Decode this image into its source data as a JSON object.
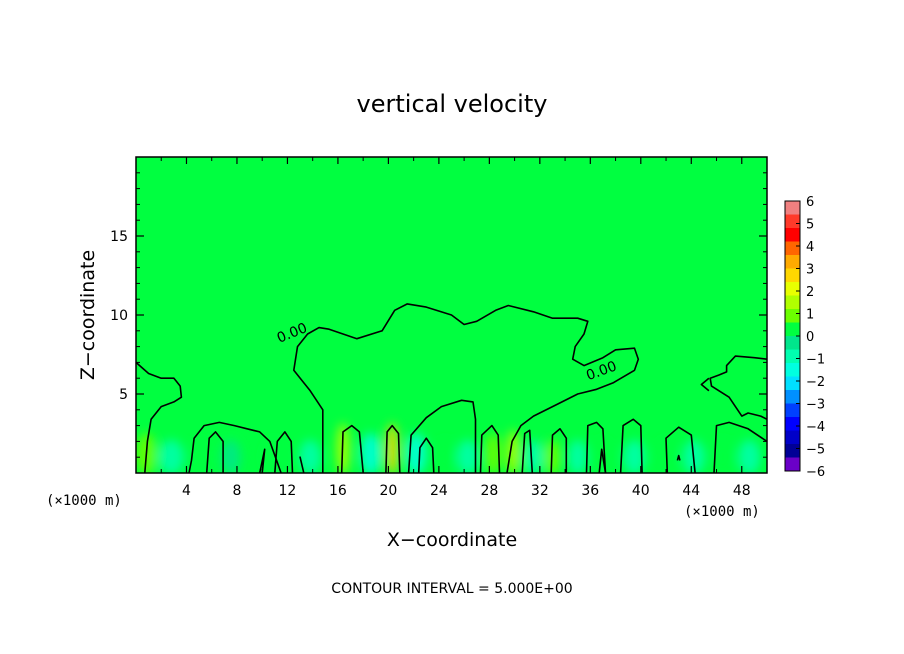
{
  "chart_data": {
    "type": "heatmap",
    "title": "vertical velocity",
    "xlabel": "X−coordinate",
    "ylabel": "Z−coordinate",
    "x_unit_left": "(×1000 m)",
    "x_unit_right": "(×1000 m)",
    "xlim": [
      0,
      50
    ],
    "ylim": [
      0,
      20
    ],
    "x_ticks": [
      4,
      8,
      12,
      16,
      20,
      24,
      28,
      32,
      36,
      40,
      44,
      48
    ],
    "y_ticks": [
      5,
      10,
      15
    ],
    "contour_level_label": "0.00",
    "footnote": "CONTOUR INTERVAL = 5.000E+00",
    "background_value": 0,
    "colorbar": {
      "ticks": [
        6,
        5,
        4,
        3,
        2,
        1,
        0,
        -1,
        -2,
        -3,
        -4,
        -5,
        -6
      ],
      "tick_labels": [
        "6",
        "5",
        "4",
        "3",
        "2",
        "1",
        "0",
        "−1",
        "−2",
        "−3",
        "−4",
        "−5",
        "−6"
      ],
      "colors": [
        "#f08080",
        "#ff3a2a",
        "#ff0000",
        "#ff6600",
        "#ffaa00",
        "#ffd700",
        "#e8ff00",
        "#b0ff00",
        "#6cff00",
        "#00ff40",
        "#00e68c",
        "#00ffb0",
        "#00ffe0",
        "#00e0ff",
        "#0090ff",
        "#0040ff",
        "#0000ff",
        "#0000c8",
        "#000096",
        "#6a00c8"
      ]
    },
    "cells": [
      {
        "x": 0.8,
        "z": 1.2,
        "w": 1.5,
        "v": 0.9
      },
      {
        "x": 2.8,
        "z": 1.0,
        "w": 1.8,
        "v": -0.8
      },
      {
        "x": 5.0,
        "z": 1.0,
        "w": 1.2,
        "v": 0.6
      },
      {
        "x": 7.5,
        "z": 1.0,
        "w": 1.4,
        "v": -0.6
      },
      {
        "x": 11.0,
        "z": 1.0,
        "w": 1.5,
        "v": 0.5
      },
      {
        "x": 13.8,
        "z": 1.0,
        "w": 1.6,
        "v": -1.0
      },
      {
        "x": 16.4,
        "z": 1.5,
        "w": 1.0,
        "v": 1.8
      },
      {
        "x": 18.6,
        "z": 1.2,
        "w": 1.5,
        "v": -1.3
      },
      {
        "x": 20.3,
        "z": 1.5,
        "w": 0.9,
        "v": 3.0
      },
      {
        "x": 22.2,
        "z": 1.2,
        "w": 1.5,
        "v": -1.2
      },
      {
        "x": 24.5,
        "z": 1.0,
        "w": 1.2,
        "v": 0.5
      },
      {
        "x": 26.3,
        "z": 1.0,
        "w": 1.6,
        "v": -0.9
      },
      {
        "x": 28.3,
        "z": 1.2,
        "w": 1.2,
        "v": 1.0
      },
      {
        "x": 29.9,
        "z": 1.3,
        "w": 1.0,
        "v": 1.8
      },
      {
        "x": 31.5,
        "z": 1.0,
        "w": 1.4,
        "v": -0.9
      },
      {
        "x": 33.0,
        "z": 1.0,
        "w": 1.2,
        "v": 0.8
      },
      {
        "x": 35.0,
        "z": 1.0,
        "w": 1.4,
        "v": -0.7
      },
      {
        "x": 37.0,
        "z": 1.0,
        "w": 1.3,
        "v": 0.6
      },
      {
        "x": 39.5,
        "z": 1.0,
        "w": 1.6,
        "v": -0.7
      },
      {
        "x": 42.0,
        "z": 1.0,
        "w": 1.4,
        "v": 0.5
      },
      {
        "x": 44.2,
        "z": 1.0,
        "w": 1.6,
        "v": -0.8
      },
      {
        "x": 46.5,
        "z": 1.0,
        "w": 1.3,
        "v": 0.6
      },
      {
        "x": 48.6,
        "z": 1.0,
        "w": 1.6,
        "v": -0.8
      }
    ],
    "contours": [
      [
        [
          11.5,
          0
        ],
        [
          10.6,
          2.0
        ],
        [
          9.8,
          2.6
        ],
        [
          8.8,
          2.8
        ],
        [
          7.8,
          3.0
        ],
        [
          6.6,
          3.2
        ],
        [
          5.4,
          3.0
        ],
        [
          4.6,
          2.2
        ],
        [
          4.4,
          0.8
        ],
        [
          4.2,
          0
        ]
      ],
      [
        [
          6.9,
          0
        ],
        [
          6.9,
          2.0
        ],
        [
          6.3,
          2.6
        ],
        [
          5.8,
          2.2
        ],
        [
          5.6,
          0
        ]
      ],
      [
        [
          14.8,
          0
        ],
        [
          14.8,
          4.0
        ],
        [
          13.8,
          5.2
        ],
        [
          12.5,
          6.5
        ],
        [
          12.8,
          8.0
        ],
        [
          13.6,
          8.8
        ],
        [
          14.5,
          9.2
        ],
        [
          15.3,
          9.1
        ],
        [
          17.5,
          8.5
        ],
        [
          19.5,
          9.0
        ],
        [
          20.5,
          10.3
        ],
        [
          21.5,
          10.7
        ],
        [
          23.0,
          10.5
        ],
        [
          25.0,
          10.0
        ],
        [
          26.0,
          9.4
        ],
        [
          27.0,
          9.6
        ],
        [
          28.5,
          10.3
        ],
        [
          29.5,
          10.6
        ],
        [
          31.5,
          10.2
        ],
        [
          33.0,
          9.8
        ],
        [
          35.0,
          9.8
        ],
        [
          35.8,
          9.6
        ],
        [
          35.5,
          8.8
        ],
        [
          34.8,
          8.0
        ],
        [
          34.6,
          7.2
        ],
        [
          35.5,
          6.8
        ],
        [
          37.0,
          7.3
        ],
        [
          38.0,
          7.8
        ],
        [
          39.5,
          7.9
        ],
        [
          39.8,
          7.2
        ],
        [
          39.5,
          6.5
        ],
        [
          37.8,
          5.7
        ],
        [
          36.5,
          5.3
        ],
        [
          35.0,
          5.0
        ],
        [
          33.5,
          4.4
        ],
        [
          31.5,
          3.6
        ],
        [
          30.5,
          3.0
        ],
        [
          29.8,
          2.0
        ],
        [
          29.4,
          0
        ]
      ],
      [
        [
          0,
          7.0
        ],
        [
          1.0,
          6.3
        ],
        [
          2.0,
          6.0
        ],
        [
          3.0,
          6.0
        ],
        [
          3.5,
          5.5
        ],
        [
          3.6,
          4.8
        ],
        [
          3.0,
          4.5
        ],
        [
          2.0,
          4.2
        ],
        [
          1.2,
          3.4
        ],
        [
          0.9,
          2.0
        ],
        [
          0.7,
          0
        ]
      ],
      [
        [
          9.8,
          0
        ],
        [
          10.2,
          1.5
        ],
        [
          10.0,
          0
        ]
      ],
      [
        [
          11.0,
          0
        ],
        [
          11.2,
          2.0
        ],
        [
          11.8,
          2.6
        ],
        [
          12.3,
          2.0
        ],
        [
          12.4,
          0
        ]
      ],
      [
        [
          13.3,
          0
        ],
        [
          13.0,
          1.0
        ],
        [
          13.3,
          0
        ]
      ],
      [
        [
          16.3,
          0
        ],
        [
          16.4,
          2.6
        ],
        [
          17.1,
          3.0
        ],
        [
          17.7,
          2.6
        ],
        [
          18.0,
          0
        ]
      ],
      [
        [
          19.8,
          0
        ],
        [
          19.9,
          2.6
        ],
        [
          20.3,
          3.0
        ],
        [
          20.8,
          2.5
        ],
        [
          20.9,
          0
        ]
      ],
      [
        [
          21.6,
          0
        ],
        [
          21.8,
          2.4
        ],
        [
          23.0,
          3.5
        ],
        [
          24.2,
          4.2
        ],
        [
          25.8,
          4.6
        ],
        [
          26.7,
          4.5
        ],
        [
          26.9,
          3.4
        ],
        [
          26.9,
          0
        ]
      ],
      [
        [
          22.4,
          0
        ],
        [
          22.5,
          1.6
        ],
        [
          23.0,
          2.2
        ],
        [
          23.5,
          1.6
        ],
        [
          23.6,
          0
        ]
      ],
      [
        [
          27.3,
          0
        ],
        [
          27.4,
          2.4
        ],
        [
          28.2,
          3.0
        ],
        [
          28.7,
          2.4
        ],
        [
          28.8,
          0
        ]
      ],
      [
        [
          30.6,
          0
        ],
        [
          30.8,
          2.5
        ],
        [
          31.2,
          2.7
        ],
        [
          31.4,
          0
        ]
      ],
      [
        [
          32.9,
          0
        ],
        [
          33.0,
          2.4
        ],
        [
          33.6,
          2.8
        ],
        [
          34.1,
          2.2
        ],
        [
          34.1,
          0
        ]
      ],
      [
        [
          35.7,
          0
        ],
        [
          35.8,
          3.0
        ],
        [
          36.5,
          3.2
        ],
        [
          37.0,
          2.8
        ],
        [
          37.2,
          0
        ]
      ],
      [
        [
          36.7,
          0
        ],
        [
          36.9,
          1.5
        ],
        [
          37.2,
          0
        ]
      ],
      [
        [
          38.4,
          0
        ],
        [
          38.6,
          3.0
        ],
        [
          39.4,
          3.4
        ],
        [
          40.0,
          3.0
        ],
        [
          40.1,
          0
        ]
      ],
      [
        [
          42.1,
          0
        ],
        [
          42.0,
          2.2
        ],
        [
          43.0,
          2.9
        ],
        [
          44.0,
          2.4
        ],
        [
          44.3,
          0
        ]
      ],
      [
        [
          42.9,
          0.8
        ],
        [
          43.0,
          1.1
        ],
        [
          43.1,
          0.8
        ]
      ],
      [
        [
          45.8,
          0
        ],
        [
          46.0,
          3.0
        ],
        [
          47.0,
          3.2
        ],
        [
          48.5,
          2.8
        ],
        [
          50.0,
          2.0
        ]
      ],
      [
        [
          50.0,
          7.2
        ],
        [
          49.0,
          7.3
        ],
        [
          47.5,
          7.4
        ],
        [
          46.8,
          6.8
        ],
        [
          46.8,
          6.4
        ],
        [
          46.2,
          6.2
        ],
        [
          45.5,
          6.0
        ],
        [
          45.6,
          5.5
        ],
        [
          46.2,
          5.2
        ],
        [
          47.0,
          4.8
        ],
        [
          47.5,
          4.2
        ],
        [
          48.0,
          3.6
        ],
        [
          48.5,
          3.8
        ],
        [
          49.5,
          3.6
        ],
        [
          50.0,
          3.4
        ]
      ],
      [
        [
          45.4,
          6.0
        ],
        [
          44.8,
          5.6
        ],
        [
          45.4,
          5.2
        ]
      ]
    ],
    "contour_labels": [
      {
        "text": "0.00",
        "x": 12.5,
        "z": 8.6,
        "angle": -22
      },
      {
        "text": "0.00",
        "x": 37.0,
        "z": 6.2,
        "angle": -20
      }
    ]
  }
}
